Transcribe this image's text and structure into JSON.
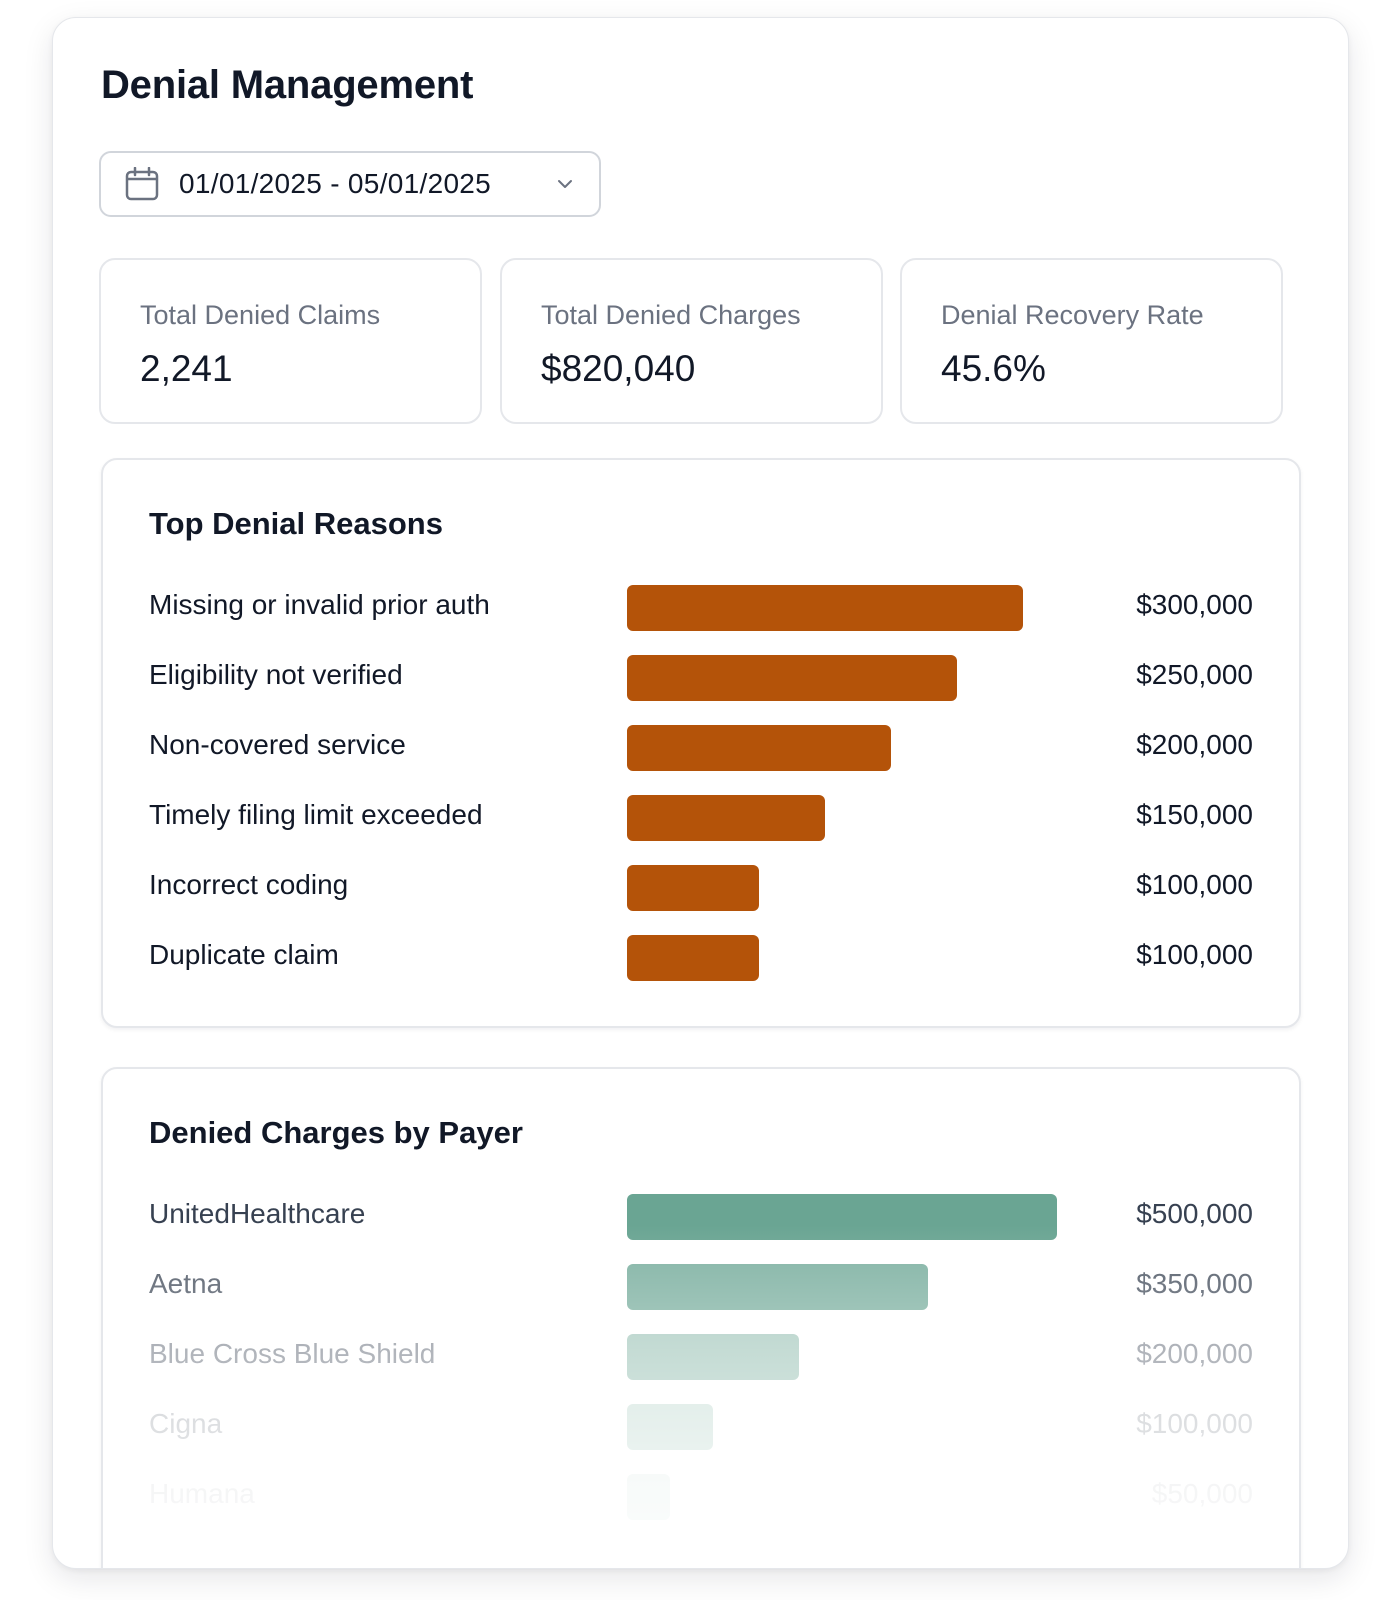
{
  "page": {
    "title": "Denial Management"
  },
  "date_range": {
    "value": "01/01/2025 - 05/01/2025",
    "icon": "calendar-icon",
    "dropdown_icon": "chevron-down-icon"
  },
  "kpis": [
    {
      "label": "Total Denied Claims",
      "value": "2,241"
    },
    {
      "label": "Total Denied Charges",
      "value": "$820,040"
    },
    {
      "label": "Denial Recovery Rate",
      "value": "45.6%"
    }
  ],
  "colors": {
    "reasons_bar": "#b45309",
    "payer_bar": "#6aa593",
    "border": "#e5e7eb",
    "text_primary": "#111827",
    "text_muted": "#6b7280"
  },
  "top_denial_reasons": {
    "title": "Top Denial Reasons",
    "max": 300000,
    "items": [
      {
        "label": "Missing or invalid prior auth",
        "value": 300000,
        "display": "$300,000"
      },
      {
        "label": "Eligibility not verified",
        "value": 250000,
        "display": "$250,000"
      },
      {
        "label": "Non-covered service",
        "value": 200000,
        "display": "$200,000"
      },
      {
        "label": "Timely filing limit exceeded",
        "value": 150000,
        "display": "$150,000"
      },
      {
        "label": "Incorrect coding",
        "value": 100000,
        "display": "$100,000"
      },
      {
        "label": "Duplicate claim",
        "value": 100000,
        "display": "$100,000"
      }
    ]
  },
  "denied_by_payer": {
    "title": "Denied Charges by Payer",
    "max": 500000,
    "items": [
      {
        "label": "UnitedHealthcare",
        "value": 500000,
        "display": "$500,000"
      },
      {
        "label": "Aetna",
        "value": 350000,
        "display": "$350,000"
      },
      {
        "label": "Blue Cross Blue Shield",
        "value": 200000,
        "display": "$200,000"
      },
      {
        "label": "Cigna",
        "value": 100000,
        "display": "$100,000"
      },
      {
        "label": "Humana",
        "value": 50000,
        "display": "$50,000"
      }
    ]
  }
}
